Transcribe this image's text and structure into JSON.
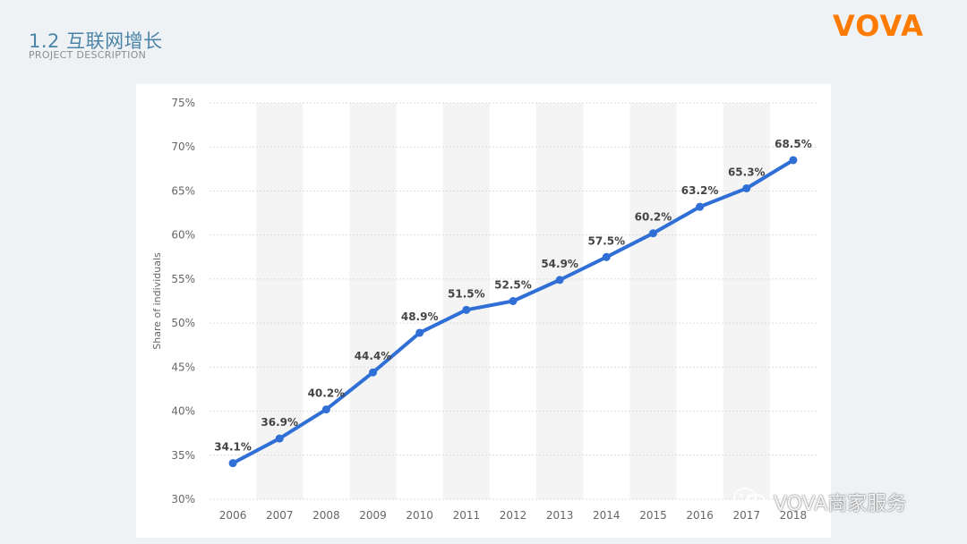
{
  "slide": {
    "title": "1.2 互联网增长",
    "subtitle": "PROJECT DESCRIPTION",
    "brand": "VOVA"
  },
  "watermark": {
    "text": "VOVA商家服务",
    "icon": "wechat-icon"
  },
  "colors": {
    "line": "#2f6fd6",
    "brand": "#ff7a00",
    "title": "#4c84a8",
    "band": "#f4f4f4",
    "grid": "#dcdcdc",
    "axis_text": "#666666",
    "label_text": "#444444"
  },
  "chart_data": {
    "type": "line",
    "title": "",
    "xlabel": "",
    "ylabel": "Share of individuals",
    "categories": [
      "2006",
      "2007",
      "2008",
      "2009",
      "2010",
      "2011",
      "2012",
      "2013",
      "2014",
      "2015",
      "2016",
      "2017",
      "2018"
    ],
    "values": [
      34.1,
      36.9,
      40.2,
      44.4,
      48.9,
      51.5,
      52.5,
      54.9,
      57.5,
      60.2,
      63.2,
      65.3,
      68.5
    ],
    "data_labels": [
      "34.1%",
      "36.9%",
      "40.2%",
      "44.4%",
      "48.9%",
      "51.5%",
      "52.5%",
      "54.9%",
      "57.5%",
      "60.2%",
      "63.2%",
      "65.3%",
      "68.5%"
    ],
    "ylim": [
      30,
      75
    ],
    "yticks": [
      30,
      35,
      40,
      45,
      50,
      55,
      60,
      65,
      70,
      75
    ],
    "ytick_labels": [
      "30%",
      "35%",
      "40%",
      "45%",
      "50%",
      "55%",
      "60%",
      "65%",
      "70%",
      "75%"
    ],
    "grid": true,
    "legend": "none"
  }
}
